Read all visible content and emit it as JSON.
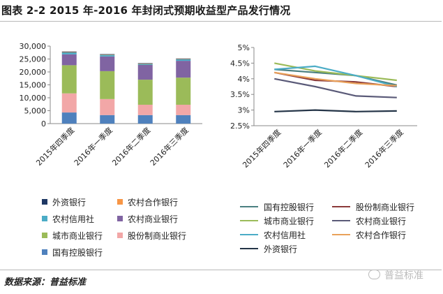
{
  "figure": {
    "title": "图表 2-2 2015 年-2016 年封闭式预期收益型产品发行情况",
    "source": "数据来源：普益标准",
    "watermark": "普益标准"
  },
  "chart_data": [
    {
      "type": "bar",
      "stacked": true,
      "categories": [
        "2015年四季度",
        "2016年一季度",
        "2016年二季度",
        "2016年三季度"
      ],
      "ylim": [
        0,
        30000
      ],
      "yticks": [
        "0",
        "5,000",
        "10,000",
        "15,000",
        "20,000",
        "25,000",
        "30,000"
      ],
      "series": [
        {
          "name": "国有控股银行",
          "color": "#4f81bd",
          "values": [
            4300,
            3300,
            3300,
            3300
          ]
        },
        {
          "name": "股份制商业银行",
          "color": "#f2a7a7",
          "values": [
            7400,
            6200,
            4000,
            4000
          ]
        },
        {
          "name": "城市商业银行",
          "color": "#9bbb59",
          "values": [
            10900,
            10800,
            9700,
            10500
          ]
        },
        {
          "name": "农村商业银行",
          "color": "#8064a2",
          "values": [
            4200,
            5700,
            5700,
            6500
          ]
        },
        {
          "name": "农村信用社",
          "color": "#4bacc6",
          "values": [
            800,
            700,
            500,
            700
          ]
        },
        {
          "name": "农村合作银行",
          "color": "#f79646",
          "values": [
            100,
            50,
            50,
            50
          ]
        },
        {
          "name": "外资银行",
          "color": "#1f3864",
          "values": [
            200,
            150,
            150,
            150
          ]
        }
      ],
      "legend": [
        "外资银行",
        "农村合作银行",
        "农村信用社",
        "农村商业银行",
        "城市商业银行",
        "股份制商业银行",
        "国有控股银行"
      ]
    },
    {
      "type": "line",
      "categories": [
        "2015年四季度",
        "2016年一季度",
        "2016年二季度",
        "2016年三季度"
      ],
      "ylim": [
        2.5,
        5
      ],
      "yticks": [
        "2.5%",
        "3%",
        "3.5%",
        "4%",
        "4.5%",
        "5%"
      ],
      "series": [
        {
          "name": "国有控股银行",
          "color": "#4a7f80",
          "values": [
            4.3,
            4.2,
            4.1,
            3.8
          ]
        },
        {
          "name": "股份制商业银行",
          "color": "#8b3a3a",
          "values": [
            4.2,
            3.95,
            3.9,
            3.75
          ]
        },
        {
          "name": "城市商业银行",
          "color": "#9bbb59",
          "values": [
            4.5,
            4.25,
            4.1,
            3.95
          ]
        },
        {
          "name": "农村商业银行",
          "color": "#5a5a78",
          "values": [
            4.0,
            3.75,
            3.45,
            3.4
          ]
        },
        {
          "name": "农村信用社",
          "color": "#4bacc6",
          "values": [
            4.3,
            4.4,
            4.1,
            3.75
          ]
        },
        {
          "name": "农村合作银行",
          "color": "#e9a15a",
          "values": [
            4.2,
            4.0,
            3.85,
            3.78
          ]
        },
        {
          "name": "外资银行",
          "color": "#243447",
          "values": [
            2.95,
            3.0,
            2.95,
            2.97
          ]
        }
      ],
      "legend": [
        "国有控股银行",
        "股份制商业银行",
        "城市商业银行",
        "农村商业银行",
        "农村信用社",
        "农村合作银行",
        "外资银行"
      ]
    }
  ]
}
